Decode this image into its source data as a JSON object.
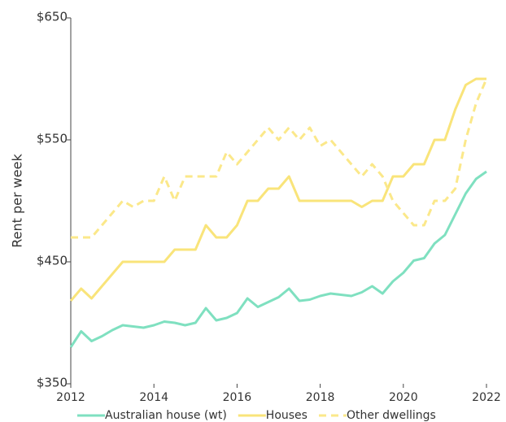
{
  "chart_data": {
    "type": "line",
    "y_label": "Rent per week",
    "x": [
      2012,
      2012.25,
      2012.5,
      2012.75,
      2013,
      2013.25,
      2013.5,
      2013.75,
      2014,
      2014.25,
      2014.5,
      2014.75,
      2015,
      2015.25,
      2015.5,
      2015.75,
      2016,
      2016.25,
      2016.5,
      2016.75,
      2017,
      2017.25,
      2017.5,
      2017.75,
      2018,
      2018.25,
      2018.5,
      2018.75,
      2019,
      2019.25,
      2019.5,
      2019.75,
      2020,
      2020.25,
      2020.5,
      2020.75,
      2021,
      2021.25,
      2021.5,
      2021.75,
      2022
    ],
    "series": [
      {
        "name": "Australian house (wt)",
        "color": "#7fe0c0",
        "dashed": false,
        "values": [
          380,
          393,
          385,
          389,
          394,
          398,
          397,
          396,
          398,
          401,
          400,
          398,
          400,
          412,
          402,
          404,
          408,
          420,
          413,
          417,
          421,
          428,
          418,
          419,
          422,
          424,
          423,
          422,
          425,
          430,
          424,
          434,
          441,
          451,
          453,
          465,
          472,
          489,
          506,
          518,
          524
        ]
      },
      {
        "name": "Houses",
        "color": "#f9e47a",
        "dashed": false,
        "values": [
          418,
          428,
          420,
          430,
          440,
          450,
          450,
          450,
          450,
          450,
          460,
          460,
          460,
          480,
          470,
          470,
          480,
          500,
          500,
          510,
          510,
          520,
          500,
          500,
          500,
          500,
          500,
          500,
          495,
          500,
          500,
          520,
          520,
          530,
          530,
          550,
          550,
          575,
          595,
          600,
          600
        ]
      },
      {
        "name": "Other dwellings",
        "color": "#fbe88a",
        "dashed": true,
        "values": [
          470,
          470,
          470,
          480,
          490,
          500,
          495,
          500,
          500,
          520,
          500,
          520,
          520,
          520,
          520,
          540,
          530,
          540,
          550,
          560,
          550,
          560,
          550,
          560,
          545,
          550,
          540,
          530,
          520,
          530,
          520,
          500,
          490,
          480,
          480,
          500,
          500,
          510,
          550,
          580,
          600
        ]
      }
    ],
    "xlim": [
      2012,
      2022
    ],
    "xticks": [
      2012,
      2014,
      2016,
      2018,
      2020,
      2022
    ],
    "ylim": [
      350,
      650
    ],
    "yticks": [
      {
        "value": 350,
        "label": "$350"
      },
      {
        "value": 450,
        "label": "$450"
      },
      {
        "value": 550,
        "label": "$550"
      },
      {
        "value": 650,
        "label": "$650"
      }
    ],
    "legend": "bottom"
  }
}
